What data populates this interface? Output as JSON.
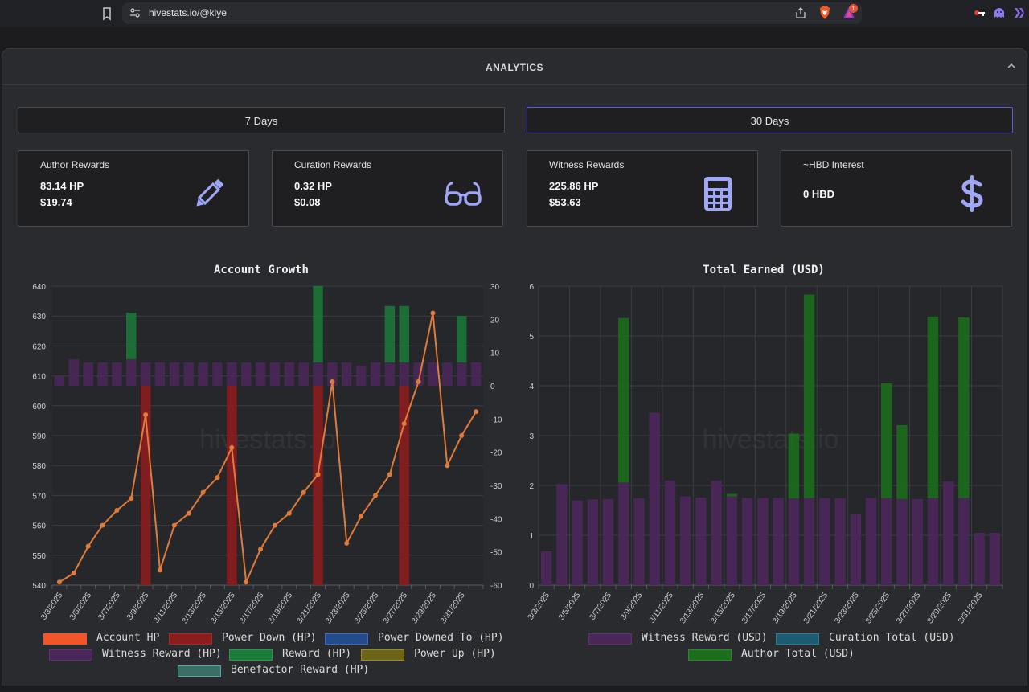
{
  "browser": {
    "url": "hivestats.io/@klye",
    "alert_count": "1"
  },
  "panel": {
    "title": "ANALYTICS"
  },
  "range_buttons": [
    {
      "label": "7 Days",
      "active": false
    },
    {
      "label": "30 Days",
      "active": true
    }
  ],
  "cards": [
    {
      "title": "Author Rewards",
      "line1": "83.14 HP",
      "line2": "$19.74",
      "icon": "pencil-icon"
    },
    {
      "title": "Curation Rewards",
      "line1": "0.32 HP",
      "line2": "$0.08",
      "icon": "glasses-icon"
    },
    {
      "title": "Witness Rewards",
      "line1": "225.86 HP",
      "line2": "$53.63",
      "icon": "calculator-icon"
    },
    {
      "title": "~HBD Interest",
      "line1": "0 HBD",
      "line2": "",
      "icon": "dollar-icon"
    }
  ],
  "colors": {
    "accent": "#9ea6f5",
    "account_hp": "#f2552a",
    "power_down": "#8b1d1d",
    "power_downed_to": "#244b8a",
    "witness": "#4a2758",
    "reward": "#1c7a3a",
    "power_up": "#6c6418",
    "benefactor": "#3a6f67",
    "curation": "#1d5b72",
    "author": "#1c6d1c"
  },
  "chart_data": [
    {
      "type": "bar+line",
      "title": "Account Growth",
      "watermark": "hivestats.io",
      "categories": [
        "3/3/2025",
        "3/4/2025",
        "3/5/2025",
        "3/6/2025",
        "3/7/2025",
        "3/8/2025",
        "3/9/2025",
        "3/10/2025",
        "3/11/2025",
        "3/12/2025",
        "3/13/2025",
        "3/14/2025",
        "3/15/2025",
        "3/16/2025",
        "3/17/2025",
        "3/18/2025",
        "3/19/2025",
        "3/20/2025",
        "3/21/2025",
        "3/22/2025",
        "3/23/2025",
        "3/24/2025",
        "3/25/2025",
        "3/26/2025",
        "3/27/2025",
        "3/28/2025",
        "3/29/2025",
        "3/30/2025",
        "3/31/2025",
        "4/1/2025"
      ],
      "tick_labels": [
        "3/3/2025",
        "3/5/2025",
        "3/7/2025",
        "3/9/2025",
        "3/11/2025",
        "3/13/2025",
        "3/15/2025",
        "3/17/2025",
        "3/19/2025",
        "3/21/2025",
        "3/23/2025",
        "3/25/2025",
        "3/27/2025",
        "3/29/2025",
        "3/31/2025"
      ],
      "y_left": {
        "min": 540,
        "max": 640,
        "ticks": [
          540,
          550,
          560,
          570,
          580,
          590,
          600,
          610,
          620,
          630,
          640
        ]
      },
      "y_right": {
        "min": -60,
        "max": 30,
        "ticks": [
          -60,
          -50,
          -40,
          -30,
          -20,
          -10,
          0,
          10,
          20,
          30
        ]
      },
      "series": [
        {
          "name": "Account HP",
          "axis": "left",
          "kind": "line",
          "values": [
            541,
            544,
            553,
            560,
            565,
            569,
            597,
            545,
            560,
            564,
            571,
            576,
            586,
            541,
            552,
            560,
            564,
            571,
            577,
            608,
            554,
            563,
            570,
            577,
            594,
            608,
            631,
            580,
            590,
            598
          ]
        },
        {
          "name": "Power Down (HP)",
          "axis": "right",
          "kind": "bar",
          "values": [
            0,
            0,
            0,
            0,
            0,
            0,
            -60,
            0,
            0,
            0,
            0,
            0,
            -60,
            0,
            0,
            0,
            0,
            0,
            -60,
            0,
            0,
            0,
            0,
            0,
            -60,
            0,
            0,
            0,
            0,
            0
          ]
        },
        {
          "name": "Power Downed To (HP)",
          "axis": "right",
          "kind": "bar",
          "values": [
            0,
            0,
            0,
            0,
            0,
            0,
            0,
            0,
            0,
            0,
            0,
            0,
            0,
            0,
            0,
            0,
            0,
            0,
            0,
            0,
            0,
            0,
            0,
            0,
            0,
            0,
            0,
            0,
            0,
            0
          ]
        },
        {
          "name": "Witness Reward (HP)",
          "axis": "right",
          "kind": "bar",
          "values": [
            3,
            8,
            7,
            7,
            7,
            8,
            7,
            7,
            7,
            7,
            7,
            7,
            7,
            7,
            7,
            7,
            7,
            7,
            7,
            7,
            7,
            6,
            7,
            7,
            7,
            7,
            7,
            7,
            7,
            7
          ]
        },
        {
          "name": "Reward (HP)",
          "axis": "right",
          "kind": "bar",
          "values": [
            0,
            0,
            0,
            0,
            0,
            14,
            0,
            0,
            0,
            0,
            0,
            0,
            0,
            0,
            0,
            0,
            0,
            0,
            23,
            0,
            0,
            0,
            0,
            17,
            17,
            0,
            0,
            0,
            14,
            0
          ]
        },
        {
          "name": "Power Up (HP)",
          "axis": "right",
          "kind": "bar",
          "values": [
            0,
            0,
            0,
            0,
            0,
            0,
            0,
            0,
            0,
            0,
            0,
            0,
            0,
            0,
            0,
            0,
            0,
            0,
            0,
            0,
            0,
            0,
            0,
            0,
            0,
            0,
            0,
            0,
            0,
            0
          ]
        },
        {
          "name": "Benefactor Reward (HP)",
          "axis": "right",
          "kind": "bar",
          "values": [
            0,
            0,
            0,
            0,
            0,
            0,
            0,
            0,
            0,
            0,
            0,
            0,
            0,
            0,
            0,
            0,
            0,
            0,
            0,
            0,
            0,
            0,
            0,
            0,
            0,
            0,
            0,
            0,
            0,
            0
          ]
        }
      ],
      "legend": [
        "Account HP",
        "Power Down (HP)",
        "Power Downed To (HP)",
        "Witness Reward (HP)",
        "Reward (HP)",
        "Power Up (HP)",
        "Benefactor Reward (HP)"
      ],
      "legend_position": "bottom"
    },
    {
      "type": "stacked-bar",
      "title": "Total Earned (USD)",
      "watermark": "hivestats.io",
      "categories": [
        "3/3/2025",
        "3/4/2025",
        "3/5/2025",
        "3/6/2025",
        "3/7/2025",
        "3/8/2025",
        "3/9/2025",
        "3/10/2025",
        "3/11/2025",
        "3/12/2025",
        "3/13/2025",
        "3/14/2025",
        "3/15/2025",
        "3/16/2025",
        "3/17/2025",
        "3/18/2025",
        "3/19/2025",
        "3/20/2025",
        "3/21/2025",
        "3/22/2025",
        "3/23/2025",
        "3/24/2025",
        "3/25/2025",
        "3/26/2025",
        "3/27/2025",
        "3/28/2025",
        "3/29/2025",
        "3/30/2025",
        "3/31/2025",
        "4/1/2025"
      ],
      "tick_labels": [
        "3/3/2025",
        "3/5/2025",
        "3/7/2025",
        "3/9/2025",
        "3/11/2025",
        "3/13/2025",
        "3/15/2025",
        "3/17/2025",
        "3/19/2025",
        "3/21/2025",
        "3/23/2025",
        "3/25/2025",
        "3/27/2025",
        "3/29/2025",
        "3/31/2025"
      ],
      "y": {
        "min": 0,
        "max": 6,
        "ticks": [
          0,
          1,
          2,
          3,
          4,
          5,
          6
        ]
      },
      "series": [
        {
          "name": "Witness Reward (USD)",
          "values": [
            0.68,
            2.03,
            1.7,
            1.72,
            1.73,
            2.06,
            1.74,
            3.46,
            2.1,
            1.78,
            1.76,
            2.1,
            1.78,
            1.75,
            1.75,
            1.75,
            1.74,
            1.75,
            1.75,
            1.74,
            1.42,
            1.75,
            1.75,
            1.73,
            1.73,
            1.75,
            2.08,
            1.75,
            1.05,
            1.05
          ]
        },
        {
          "name": "Curation Total (USD)",
          "values": [
            0,
            0,
            0,
            0,
            0,
            0,
            0,
            0,
            0,
            0,
            0,
            0,
            0,
            0,
            0,
            0,
            0,
            0,
            0,
            0,
            0,
            0,
            0,
            0,
            0,
            0,
            0,
            0,
            0,
            0
          ]
        },
        {
          "name": "Author Total (USD)",
          "values": [
            0,
            0,
            0,
            0,
            0,
            3.3,
            0,
            0,
            0,
            0,
            0,
            0,
            0.05,
            0,
            0,
            0,
            1.3,
            4.08,
            0,
            0,
            0,
            0,
            2.3,
            1.48,
            0,
            3.64,
            0,
            3.62,
            0,
            0
          ]
        }
      ],
      "legend": [
        "Witness Reward (USD)",
        "Curation Total (USD)",
        "Author Total (USD)"
      ],
      "legend_position": "bottom"
    }
  ]
}
